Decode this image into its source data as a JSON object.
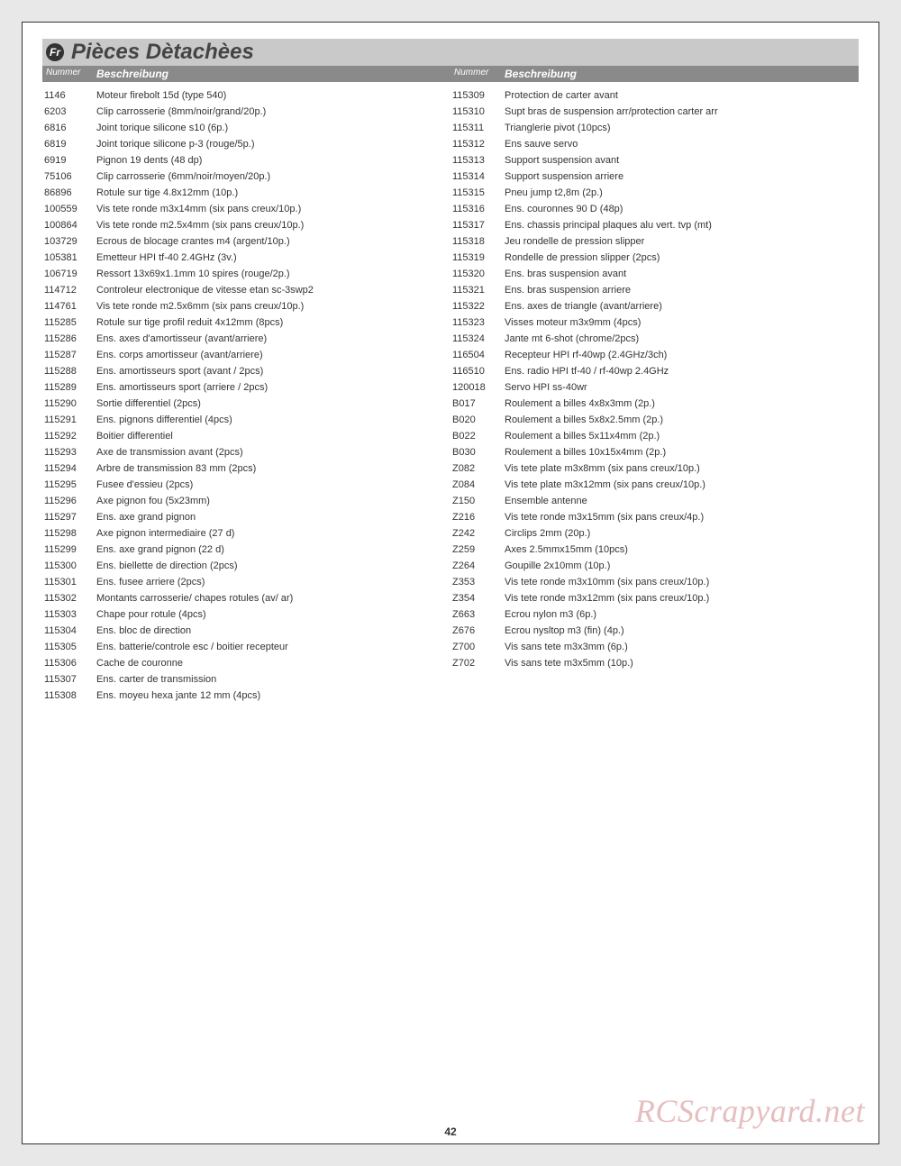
{
  "page": {
    "lang_badge": "Fr",
    "title": "Pièces Dètachèes",
    "page_number": "42",
    "watermark": "RCScrapyard.net",
    "headers": {
      "num": "Nummer",
      "desc": "Beschreibung"
    },
    "left_column": [
      {
        "num": "1146",
        "desc": "Moteur firebolt 15d (type 540)"
      },
      {
        "num": "6203",
        "desc": "Clip carrosserie (8mm/noir/grand/20p.)"
      },
      {
        "num": "6816",
        "desc": "Joint torique silicone s10 (6p.)"
      },
      {
        "num": "6819",
        "desc": "Joint torique silicone p-3 (rouge/5p.)"
      },
      {
        "num": "6919",
        "desc": "Pignon 19 dents (48 dp)"
      },
      {
        "num": "75106",
        "desc": "Clip carrosserie (6mm/noir/moyen/20p.)"
      },
      {
        "num": "86896",
        "desc": "Rotule sur tige 4.8x12mm (10p.)"
      },
      {
        "num": "100559",
        "desc": "Vis tete ronde m3x14mm (six pans creux/10p.)"
      },
      {
        "num": "100864",
        "desc": "Vis tete ronde m2.5x4mm (six pans creux/10p.)"
      },
      {
        "num": "103729",
        "desc": "Ecrous de blocage crantes m4 (argent/10p.)"
      },
      {
        "num": "105381",
        "desc": "Emetteur HPI tf-40 2.4GHz (3v.)"
      },
      {
        "num": "106719",
        "desc": "Ressort 13x69x1.1mm 10 spires (rouge/2p.)"
      },
      {
        "num": "114712",
        "desc": "Controleur electronique de vitesse etan sc-3swp2"
      },
      {
        "num": "114761",
        "desc": "Vis tete ronde m2.5x6mm (six pans creux/10p.)"
      },
      {
        "num": "115285",
        "desc": "Rotule sur tige profil reduit 4x12mm (8pcs)"
      },
      {
        "num": "115286",
        "desc": "Ens. axes  d'amortisseur (avant/arriere)"
      },
      {
        "num": "115287",
        "desc": "Ens. corps amortisseur (avant/arriere)"
      },
      {
        "num": "115288",
        "desc": "Ens. amortisseurs sport (avant / 2pcs)"
      },
      {
        "num": "115289",
        "desc": "Ens. amortisseurs sport (arriere / 2pcs)"
      },
      {
        "num": "115290",
        "desc": "Sortie differentiel (2pcs)"
      },
      {
        "num": "115291",
        "desc": "Ens. pignons differentiel (4pcs)"
      },
      {
        "num": "115292",
        "desc": "Boitier differentiel"
      },
      {
        "num": "115293",
        "desc": "Axe de transmission avant (2pcs)"
      },
      {
        "num": "115294",
        "desc": "Arbre de transmission 83 mm (2pcs)"
      },
      {
        "num": "115295",
        "desc": "Fusee d'essieu (2pcs)"
      },
      {
        "num": "115296",
        "desc": "Axe pignon fou (5x23mm)"
      },
      {
        "num": "115297",
        "desc": "Ens. axe grand pignon"
      },
      {
        "num": "115298",
        "desc": "Axe pignon intermediaire (27 d)"
      },
      {
        "num": "115299",
        "desc": "Ens. axe grand pignon (22 d)"
      },
      {
        "num": "115300",
        "desc": "Ens. biellette de direction (2pcs)"
      },
      {
        "num": "115301",
        "desc": "Ens. fusee arriere (2pcs)"
      },
      {
        "num": "115302",
        "desc": "Montants carrosserie/ chapes rotules (av/ ar)"
      },
      {
        "num": "115303",
        "desc": "Chape pour rotule (4pcs)"
      },
      {
        "num": "115304",
        "desc": "Ens. bloc de direction"
      },
      {
        "num": "115305",
        "desc": "Ens. batterie/controle esc / boitier recepteur"
      },
      {
        "num": "115306",
        "desc": "Cache de couronne"
      },
      {
        "num": "115307",
        "desc": "Ens. carter de transmission"
      },
      {
        "num": "115308",
        "desc": "Ens. moyeu hexa jante 12 mm (4pcs)"
      }
    ],
    "right_column": [
      {
        "num": "115309",
        "desc": "Protection de carter avant"
      },
      {
        "num": "115310",
        "desc": "Supt bras de suspension arr/protection carter arr"
      },
      {
        "num": "115311",
        "desc": "Trianglerie pivot (10pcs)"
      },
      {
        "num": "115312",
        "desc": "Ens sauve servo"
      },
      {
        "num": "115313",
        "desc": "Support suspension avant"
      },
      {
        "num": "115314",
        "desc": "Support suspension arriere"
      },
      {
        "num": "115315",
        "desc": "Pneu jump t2,8m (2p.)"
      },
      {
        "num": "115316",
        "desc": "Ens. couronnes 90 D (48p)"
      },
      {
        "num": "115317",
        "desc": "Ens. chassis principal plaques alu vert. tvp (mt)"
      },
      {
        "num": "115318",
        "desc": "Jeu rondelle de pression slipper"
      },
      {
        "num": "115319",
        "desc": "Rondelle de pression slipper (2pcs)"
      },
      {
        "num": "115320",
        "desc": "Ens. bras suspension avant"
      },
      {
        "num": "115321",
        "desc": "Ens. bras suspension arriere"
      },
      {
        "num": "115322",
        "desc": "Ens. axes de triangle (avant/arriere)"
      },
      {
        "num": "115323",
        "desc": "Visses moteur m3x9mm (4pcs)"
      },
      {
        "num": "115324",
        "desc": "Jante mt 6-shot (chrome/2pcs)"
      },
      {
        "num": "116504",
        "desc": "Recepteur HPI rf-40wp (2.4GHz/3ch)"
      },
      {
        "num": "116510",
        "desc": "Ens. radio HPI tf-40 / rf-40wp 2.4GHz"
      },
      {
        "num": "120018",
        "desc": "Servo HPI ss-40wr"
      },
      {
        "num": "B017",
        "desc": "Roulement a billes 4x8x3mm (2p.)"
      },
      {
        "num": "B020",
        "desc": "Roulement a billes 5x8x2.5mm (2p.)"
      },
      {
        "num": "B022",
        "desc": "Roulement a billes 5x11x4mm (2p.)"
      },
      {
        "num": "B030",
        "desc": "Roulement a billes 10x15x4mm (2p.)"
      },
      {
        "num": "Z082",
        "desc": "Vis tete plate m3x8mm (six pans creux/10p.)"
      },
      {
        "num": "Z084",
        "desc": "Vis tete plate m3x12mm (six pans creux/10p.)"
      },
      {
        "num": "Z150",
        "desc": "Ensemble antenne"
      },
      {
        "num": "Z216",
        "desc": "Vis tete ronde m3x15mm (six pans creux/4p.)"
      },
      {
        "num": "Z242",
        "desc": "Circlips 2mm (20p.)"
      },
      {
        "num": "Z259",
        "desc": "Axes 2.5mmx15mm (10pcs)"
      },
      {
        "num": "Z264",
        "desc": "Goupille 2x10mm (10p.)"
      },
      {
        "num": "Z353",
        "desc": "Vis tete ronde m3x10mm (six pans creux/10p.)"
      },
      {
        "num": "Z354",
        "desc": "Vis tete ronde m3x12mm (six pans creux/10p.)"
      },
      {
        "num": "Z663",
        "desc": "Ecrou nylon m3 (6p.)"
      },
      {
        "num": "Z676",
        "desc": "Ecrou nysltop m3 (fin) (4p.)"
      },
      {
        "num": "Z700",
        "desc": "Vis sans tete m3x3mm (6p.)"
      },
      {
        "num": "Z702",
        "desc": "Vis sans tete m3x5mm (10p.)"
      }
    ]
  }
}
